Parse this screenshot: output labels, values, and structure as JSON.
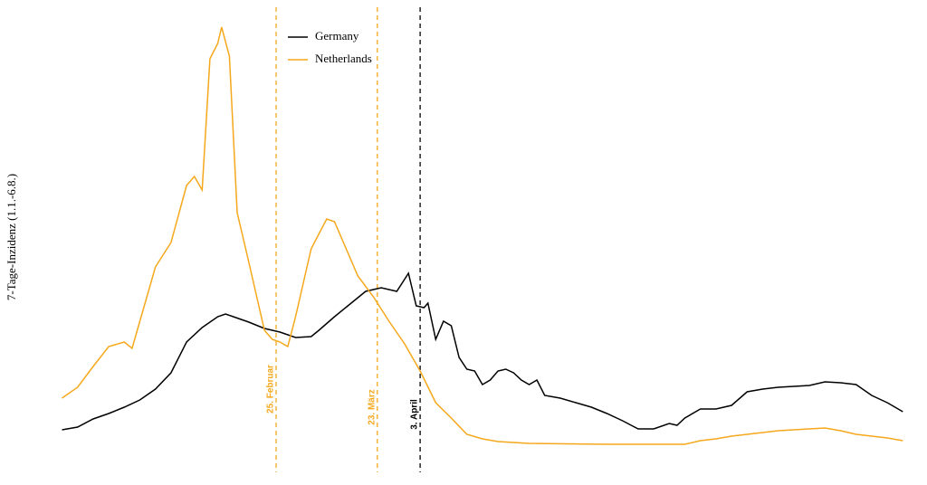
{
  "chart_data": {
    "type": "line",
    "ylabel": "7-Tage-Inzidenz (1.1.-6.8.)",
    "xlim": [
      0,
      217
    ],
    "ylim": [
      0,
      100
    ],
    "series": [
      {
        "name": "Germany",
        "color": "#000000",
        "x": [
          0,
          4,
          8,
          12,
          16,
          20,
          24,
          28,
          32,
          36,
          40,
          42,
          44,
          48,
          52,
          56,
          60,
          64,
          66,
          70,
          74,
          78,
          82,
          86,
          89,
          91,
          93,
          94,
          96,
          98,
          100,
          102,
          104,
          106,
          108,
          110,
          112,
          114,
          116,
          118,
          120,
          122,
          124,
          128,
          132,
          136,
          140,
          144,
          148,
          152,
          156,
          158,
          160,
          164,
          168,
          172,
          176,
          180,
          184,
          188,
          192,
          196,
          200,
          204,
          208,
          212,
          216
        ],
        "values": [
          9,
          9.6,
          11.4,
          12.6,
          14,
          15.6,
          18,
          21.6,
          28.4,
          31.6,
          34,
          34.6,
          34,
          32.8,
          31.4,
          30.6,
          29.4,
          29.6,
          31,
          34,
          36.8,
          39.6,
          40.4,
          39.6,
          43.6,
          36.4,
          36,
          37,
          29,
          33,
          32,
          25,
          22.4,
          22,
          19,
          20,
          22,
          22.4,
          21.6,
          20,
          19,
          20,
          16.6,
          16,
          15,
          14,
          12.6,
          11,
          9.2,
          9.2,
          10.4,
          10,
          11.6,
          13.6,
          13.6,
          14.4,
          17.4,
          18,
          18.4,
          18.6,
          18.8,
          19.6,
          19.4,
          19,
          16.6,
          15,
          13
        ]
      },
      {
        "name": "Netherlands",
        "color": "#f5a81c",
        "x": [
          0,
          4,
          8,
          12,
          16,
          18,
          20,
          24,
          28,
          32,
          34,
          36,
          38,
          40,
          41,
          43,
          45,
          48,
          52,
          54,
          56,
          58,
          60,
          64,
          68,
          70,
          72,
          76,
          80,
          84,
          88,
          92,
          96,
          100,
          104,
          108,
          112,
          116,
          120,
          140,
          160,
          164,
          168,
          172,
          176,
          180,
          184,
          188,
          192,
          196,
          200,
          204,
          208,
          212,
          216
        ],
        "values": [
          16,
          18.4,
          23,
          27.4,
          28.4,
          27,
          33,
          45,
          50.4,
          63,
          65,
          62,
          91,
          94.4,
          98,
          91.6,
          57,
          46,
          31,
          29,
          28.4,
          27.4,
          34,
          49,
          55.6,
          55,
          51,
          43,
          38.4,
          33,
          28,
          22,
          15,
          11.6,
          8,
          7,
          6.4,
          6.2,
          6,
          5.8,
          5.8,
          6.6,
          7,
          7.6,
          8,
          8.4,
          8.8,
          9,
          9.2,
          9.4,
          8.8,
          8,
          7.6,
          7.2,
          6.6
        ]
      }
    ],
    "annotations": [
      {
        "label": "25. Februar",
        "x": 55,
        "color": "#f5a81c"
      },
      {
        "label": "23. März",
        "x": 81,
        "color": "#f5a81c"
      },
      {
        "label": "3. April",
        "x": 92,
        "color": "#000000"
      }
    ]
  }
}
